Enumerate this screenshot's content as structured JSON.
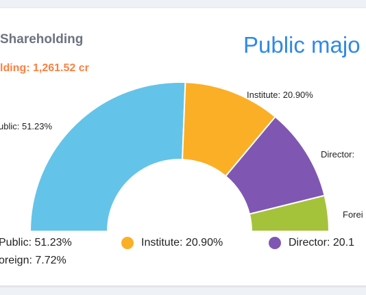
{
  "card": {
    "title": "Shareholding",
    "value": "lding: 1,261.52 cr",
    "headline": "Public majo"
  },
  "chart_data": {
    "type": "pie",
    "style": "half-donut",
    "categories": [
      "Public",
      "Institute",
      "Director",
      "Foreign"
    ],
    "values": [
      51.23,
      20.9,
      20.15,
      7.72
    ],
    "colors": [
      "#64c3e8",
      "#fbaf26",
      "#7f57b2",
      "#a5c23b"
    ],
    "slice_labels": [
      "ublic: 51.23%",
      "Institute: 20.90%",
      "Director: ",
      "Forei"
    ],
    "legend": [
      {
        "label": "Public: 51.23%",
        "color": "#64c3e8"
      },
      {
        "label": "Institute: 20.90%",
        "color": "#fbaf26"
      },
      {
        "label": "Director: 20.1",
        "color": "#7f57b2"
      },
      {
        "label": "oreign: 7.72%",
        "color": "#a5c23b"
      }
    ]
  }
}
